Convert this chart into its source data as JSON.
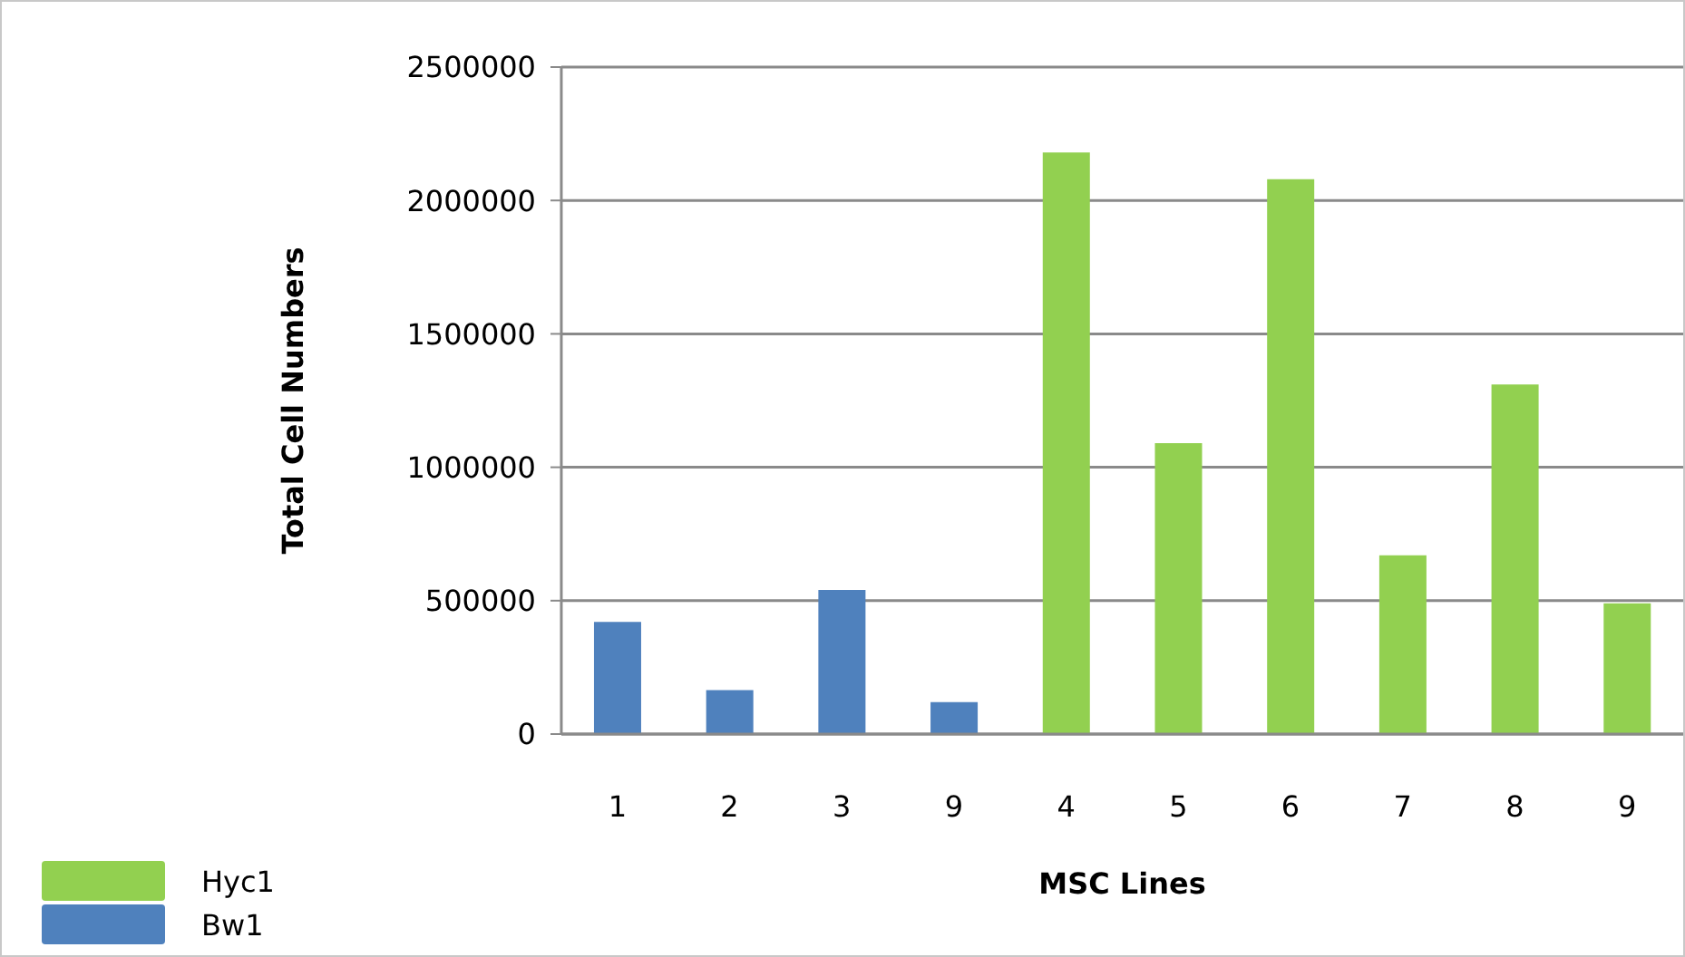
{
  "chart_data": {
    "type": "bar",
    "xlabel": "MSC Lines",
    "ylabel": "Total Cell Numbers",
    "categories": [
      "1",
      "2",
      "3",
      "9",
      "4",
      "5",
      "6",
      "7",
      "8",
      "9"
    ],
    "series": [
      {
        "name": "Hyc1",
        "color": "#92d050",
        "values": [
          null,
          null,
          null,
          null,
          2180000,
          1090000,
          2080000,
          670000,
          1310000,
          490000
        ]
      },
      {
        "name": "Bw1",
        "color": "#4f81bd",
        "values": [
          420000,
          165000,
          540000,
          120000,
          null,
          null,
          null,
          null,
          null,
          null
        ]
      }
    ],
    "stacked": true,
    "ylim": [
      0,
      2500000
    ],
    "yticks": [
      0,
      500000,
      1000000,
      1500000,
      2000000,
      2500000
    ],
    "grid": "y",
    "legend": "bottom left"
  }
}
